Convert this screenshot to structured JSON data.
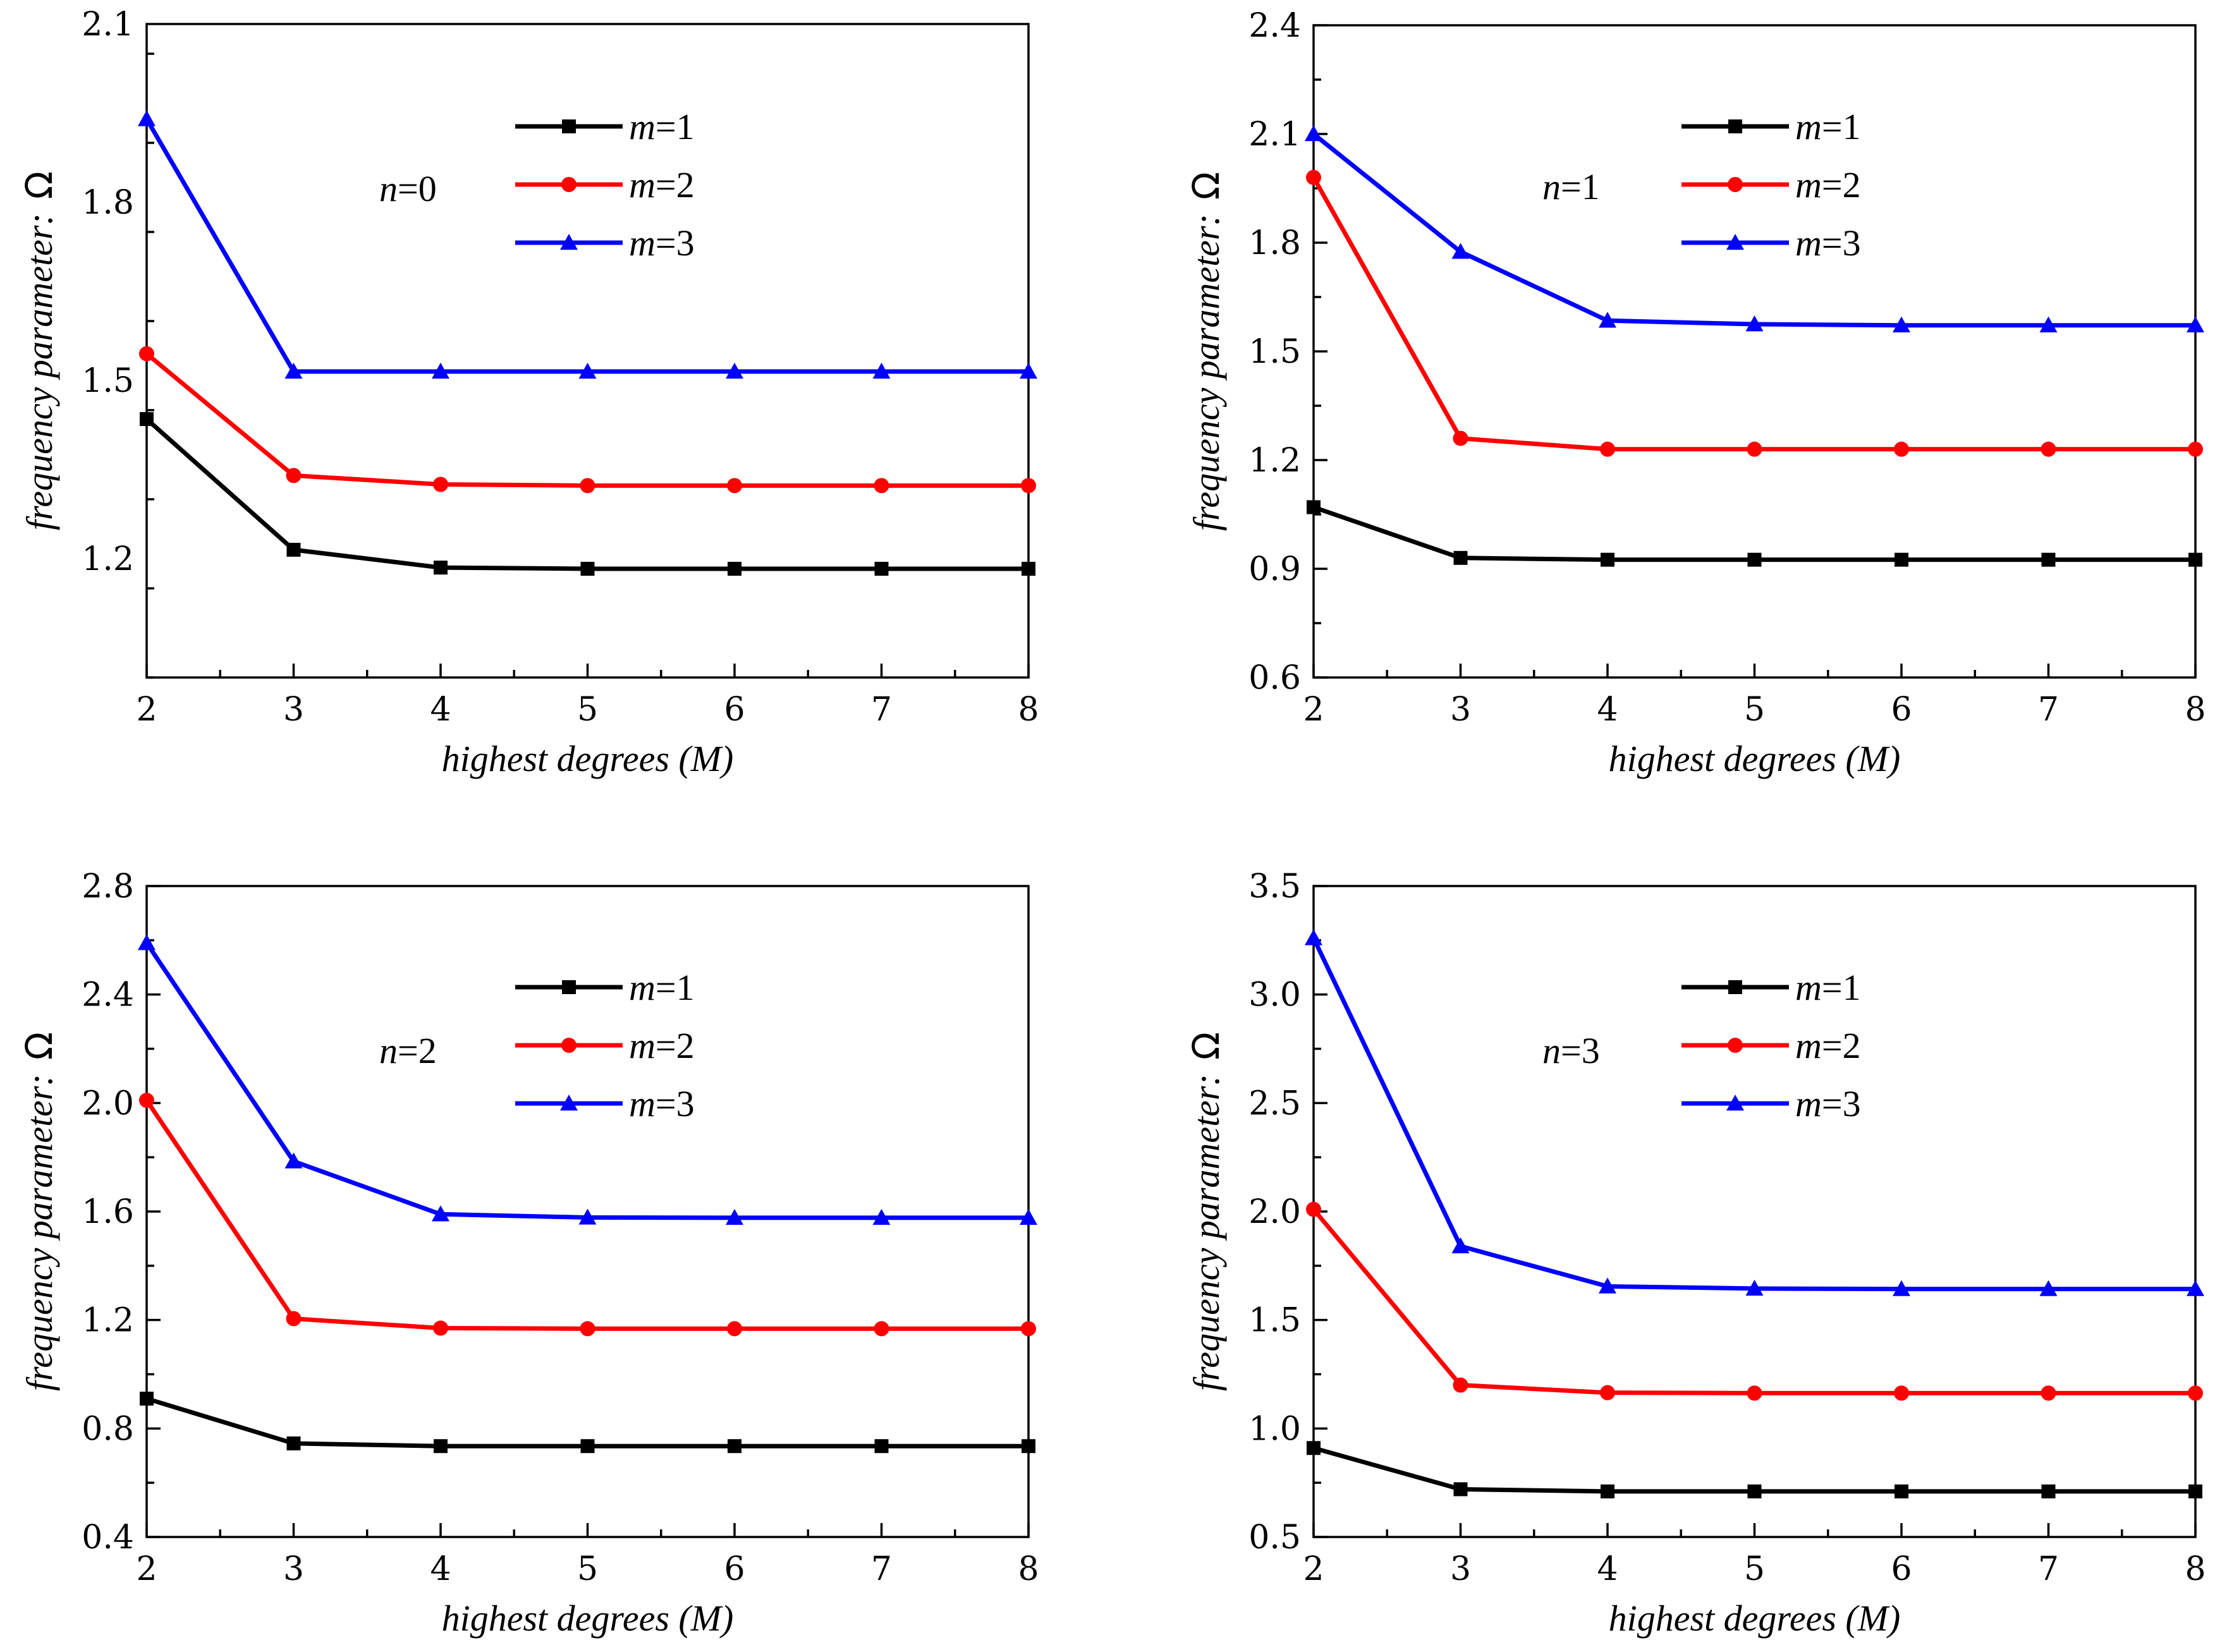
{
  "chart_data": [
    {
      "type": "line",
      "annotation": {
        "var": "n",
        "eq": "=0"
      },
      "xlabel": {
        "text": "highest degrees (",
        "var": "M",
        "close": ")"
      },
      "ylabel": {
        "text": "frequency parameter:",
        "symbol": "Ω"
      },
      "xlim": [
        2,
        8
      ],
      "ylim": [
        1.0,
        2.1
      ],
      "yticks": [
        1.2,
        1.5,
        1.8,
        2.1
      ],
      "ytick_labels": [
        "1.2",
        "1.5",
        "1.8",
        "2.1"
      ],
      "xticks": [
        2,
        3,
        4,
        5,
        6,
        7,
        8
      ],
      "xtick_labels": [
        "2",
        "3",
        "4",
        "5",
        "6",
        "7",
        "8"
      ],
      "x": [
        2,
        3,
        4,
        5,
        6,
        7,
        8
      ],
      "series": [
        {
          "var": "m",
          "eq": "=1",
          "color": "#000000",
          "marker": "square",
          "values": [
            1.435,
            1.215,
            1.185,
            1.183,
            1.183,
            1.183,
            1.183
          ]
        },
        {
          "var": "m",
          "eq": "=2",
          "color": "#ff0000",
          "marker": "circle",
          "values": [
            1.545,
            1.34,
            1.325,
            1.323,
            1.323,
            1.323,
            1.323
          ]
        },
        {
          "var": "m",
          "eq": "=3",
          "color": "#0000ff",
          "marker": "triangle",
          "values": [
            1.94,
            1.515,
            1.515,
            1.515,
            1.515,
            1.515,
            1.515
          ]
        }
      ]
    },
    {
      "type": "line",
      "annotation": {
        "var": "n",
        "eq": "=1"
      },
      "xlabel": {
        "text": "highest degrees (",
        "var": "M",
        "close": ")"
      },
      "ylabel": {
        "text": "frequency parameter:",
        "symbol": "Ω"
      },
      "xlim": [
        2,
        8
      ],
      "ylim": [
        0.6,
        2.4
      ],
      "yticks": [
        0.6,
        0.9,
        1.2,
        1.5,
        1.8,
        2.1,
        2.4
      ],
      "ytick_labels": [
        "0.6",
        "0.9",
        "1.2",
        "1.5",
        "1.8",
        "2.1",
        "2.4"
      ],
      "xticks": [
        2,
        3,
        4,
        5,
        6,
        7,
        8
      ],
      "xtick_labels": [
        "2",
        "3",
        "4",
        "5",
        "6",
        "7",
        "8"
      ],
      "x": [
        2,
        3,
        4,
        5,
        6,
        7,
        8
      ],
      "series": [
        {
          "var": "m",
          "eq": "=1",
          "color": "#000000",
          "marker": "square",
          "values": [
            1.07,
            0.93,
            0.925,
            0.925,
            0.925,
            0.925,
            0.925
          ]
        },
        {
          "var": "m",
          "eq": "=2",
          "color": "#ff0000",
          "marker": "circle",
          "values": [
            1.98,
            1.26,
            1.23,
            1.23,
            1.23,
            1.23,
            1.23
          ]
        },
        {
          "var": "m",
          "eq": "=3",
          "color": "#0000ff",
          "marker": "triangle",
          "values": [
            2.1,
            1.775,
            1.585,
            1.575,
            1.572,
            1.572,
            1.572
          ]
        }
      ]
    },
    {
      "type": "line",
      "annotation": {
        "var": "n",
        "eq": "=2"
      },
      "xlabel": {
        "text": "highest degrees (",
        "var": "M",
        "close": ")"
      },
      "ylabel": {
        "text": "frequency parameter:",
        "symbol": "Ω"
      },
      "xlim": [
        2,
        8
      ],
      "ylim": [
        0.4,
        2.8
      ],
      "yticks": [
        0.4,
        0.8,
        1.2,
        1.6,
        2.0,
        2.4,
        2.8
      ],
      "ytick_labels": [
        "0.4",
        "0.8",
        "1.2",
        "1.6",
        "2.0",
        "2.4",
        "2.8"
      ],
      "xticks": [
        2,
        3,
        4,
        5,
        6,
        7,
        8
      ],
      "xtick_labels": [
        "2",
        "3",
        "4",
        "5",
        "6",
        "7",
        "8"
      ],
      "x": [
        2,
        3,
        4,
        5,
        6,
        7,
        8
      ],
      "series": [
        {
          "var": "m",
          "eq": "=1",
          "color": "#000000",
          "marker": "square",
          "values": [
            0.91,
            0.745,
            0.735,
            0.735,
            0.735,
            0.735,
            0.735
          ]
        },
        {
          "var": "m",
          "eq": "=2",
          "color": "#ff0000",
          "marker": "circle",
          "values": [
            2.01,
            1.205,
            1.17,
            1.168,
            1.168,
            1.168,
            1.168
          ]
        },
        {
          "var": "m",
          "eq": "=3",
          "color": "#0000ff",
          "marker": "triangle",
          "values": [
            2.59,
            1.785,
            1.59,
            1.578,
            1.577,
            1.577,
            1.577
          ]
        }
      ]
    },
    {
      "type": "line",
      "annotation": {
        "var": "n",
        "eq": "=3"
      },
      "xlabel": {
        "text": "highest degrees (",
        "var": "M",
        "close": ")"
      },
      "ylabel": {
        "text": "frequency parameter:",
        "symbol": "Ω"
      },
      "xlim": [
        2,
        8
      ],
      "ylim": [
        0.5,
        3.5
      ],
      "yticks": [
        0.5,
        1.0,
        1.5,
        2.0,
        2.5,
        3.0,
        3.5
      ],
      "ytick_labels": [
        "0.5",
        "1.0",
        "1.5",
        "2.0",
        "2.5",
        "3.0",
        "3.5"
      ],
      "xticks": [
        2,
        3,
        4,
        5,
        6,
        7,
        8
      ],
      "xtick_labels": [
        "2",
        "3",
        "4",
        "5",
        "6",
        "7",
        "8"
      ],
      "x": [
        2,
        3,
        4,
        5,
        6,
        7,
        8
      ],
      "series": [
        {
          "var": "m",
          "eq": "=1",
          "color": "#000000",
          "marker": "square",
          "values": [
            0.91,
            0.72,
            0.71,
            0.71,
            0.71,
            0.71,
            0.71
          ]
        },
        {
          "var": "m",
          "eq": "=2",
          "color": "#ff0000",
          "marker": "circle",
          "values": [
            2.01,
            1.2,
            1.165,
            1.163,
            1.163,
            1.163,
            1.163
          ]
        },
        {
          "var": "m",
          "eq": "=3",
          "color": "#0000ff",
          "marker": "triangle",
          "values": [
            3.26,
            1.84,
            1.655,
            1.645,
            1.643,
            1.643,
            1.643
          ]
        }
      ]
    }
  ]
}
